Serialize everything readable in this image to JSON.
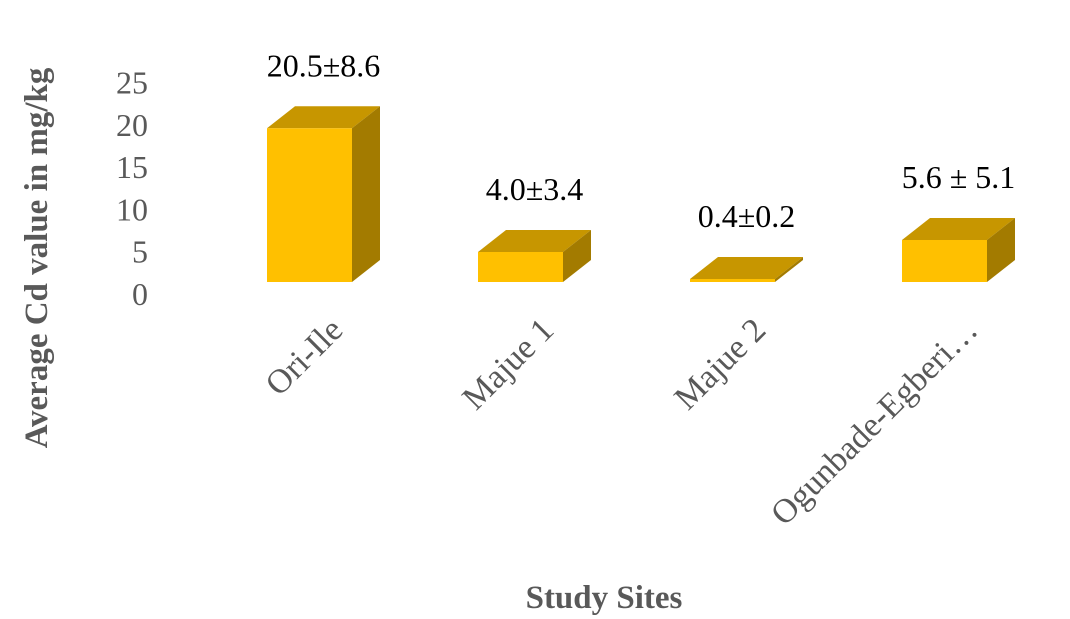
{
  "chart_data": {
    "type": "bar",
    "style": "3d-column",
    "title": "",
    "xlabel": "Study Sites",
    "ylabel": "Average Cd value in mg/kg",
    "categories": [
      "Ori-Ile",
      "Majue 1",
      "Majue 2",
      "Ogunbade-Egberi…"
    ],
    "values": [
      20.5,
      4.0,
      0.4,
      5.6
    ],
    "data_labels": [
      "20.5±8.6",
      "4.0±3.4",
      "0.4±0.2",
      "5.6 ± 5.1"
    ],
    "yticks": [
      "0",
      "5",
      "10",
      "15",
      "20",
      "25"
    ],
    "ylim": [
      0,
      25
    ],
    "grid": false,
    "legend": "none",
    "colors": {
      "front": "#FFC000",
      "side": "#A37B00",
      "top": "#C79600",
      "text": "#595959"
    }
  }
}
